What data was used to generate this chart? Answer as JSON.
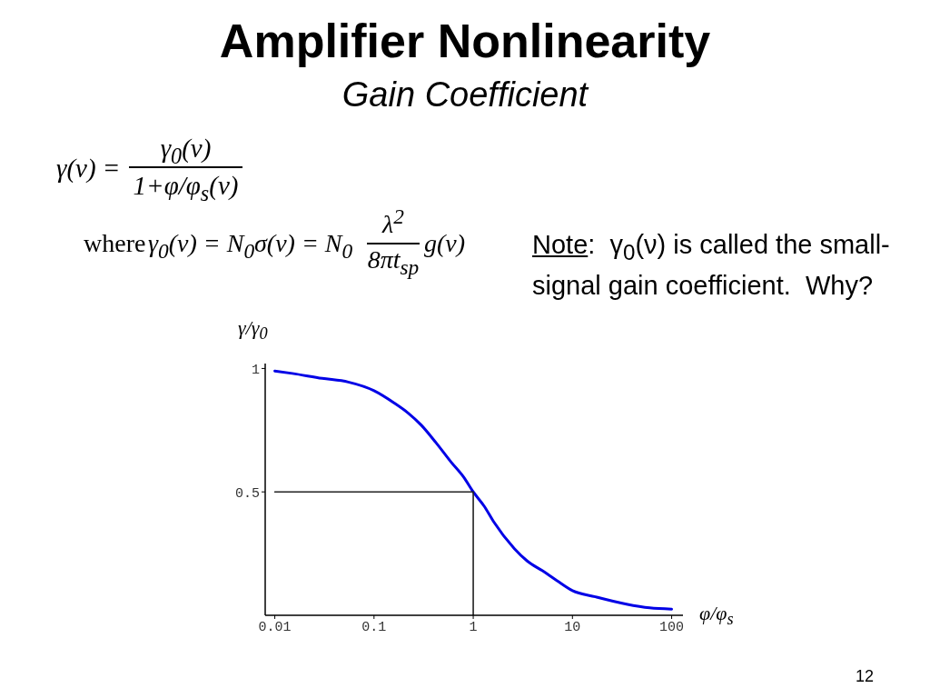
{
  "chart_data": {
    "type": "line",
    "title": "Amplifier Nonlinearity",
    "subtitle": "Gain Coefficient",
    "xlabel": "φ/φ$_{s}$",
    "ylabel": "γ/γ$_{0}$",
    "series": [
      {
        "color": "#0000e6",
        "x": [
          0.01,
          0.015,
          0.03,
          0.055,
          0.1,
          0.16,
          0.22,
          0.3,
          0.42,
          0.6,
          0.8,
          1,
          1.3,
          1.6,
          2.6,
          3.5,
          5,
          7,
          10,
          17,
          35,
          60,
          100
        ],
        "values": [
          0.99,
          0.98,
          0.96,
          0.945,
          0.91,
          0.86,
          0.82,
          0.77,
          0.7,
          0.62,
          0.56,
          0.5,
          0.44,
          0.38,
          0.27,
          0.22,
          0.18,
          0.14,
          0.1,
          0.075,
          0.045,
          0.03,
          0.025
        ]
      },
      {
        "type": "line",
        "color": "#222222",
        "x": [
          0.01,
          1,
          1
        ],
        "values": [
          0.5,
          0.5,
          0
        ]
      }
    ],
    "xlim": [
      0.008,
      130
    ],
    "ylim": [
      0,
      1.02
    ],
    "xticks": [
      0.01,
      0.1,
      1,
      10,
      100
    ],
    "yticks": [
      0.5,
      1
    ],
    "log": "x",
    "annotations": [
      "γ(ν) =",
      "γ$_{0}$(ν)",
      "1+φ/φ$_{s}$(ν)",
      "where",
      "γ$_{0}$(ν) = N$_{0}$σ(ν) = N$_{0}$",
      "λ$^{2}$",
      "8πt$_{sp}$",
      "g(ν)",
      "Note:  γ$_{0}$(ν) is called the small-signal gain coefficient.  Why?",
      "12"
    ]
  }
}
